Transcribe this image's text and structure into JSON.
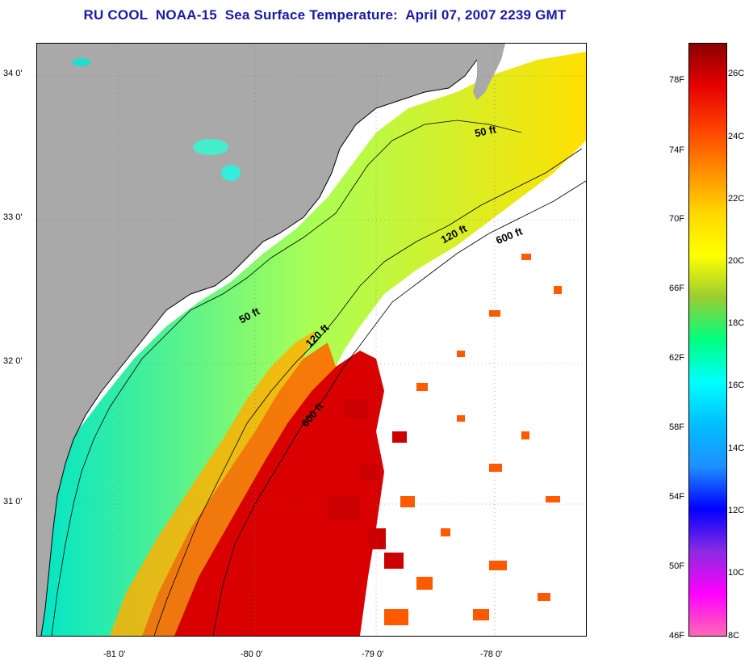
{
  "title": "RU COOL  NOAA-15  Sea Surface Temperature:  April 07, 2007 2239 GMT",
  "map": {
    "latitude_labels": [
      "34 0'",
      "33 0'",
      "32 0'",
      "31 0'"
    ],
    "longitude_labels": [
      "-81 0'",
      "-80 0'",
      "-79 0'",
      "-78 0'"
    ],
    "contour_labels": [
      "50 ft",
      "120 ft",
      "600 ft",
      "50 ft",
      "120 ft",
      "600 ft"
    ],
    "colors": {
      "land": "#a9a9a9",
      "cloud_mask": "#ffffff",
      "coastline": "#000000"
    }
  },
  "colorbar": {
    "fahrenheit_labels": [
      "78F",
      "74F",
      "70F",
      "66F",
      "62F",
      "58F",
      "54F",
      "50F",
      "46F"
    ],
    "celsius_labels": [
      "26C",
      "24C",
      "22C",
      "20C",
      "18C",
      "16C",
      "14C",
      "12C",
      "10C",
      "8C"
    ],
    "gradient_colors": [
      "#8b0000",
      "#e60000",
      "#ff4000",
      "#ff8c00",
      "#ffd700",
      "#ffff00",
      "#9acd32",
      "#00ff7f",
      "#00ffff",
      "#00bfff",
      "#1e90ff",
      "#0000ff",
      "#8a2be2",
      "#ff00ff",
      "#ff69b4"
    ]
  }
}
